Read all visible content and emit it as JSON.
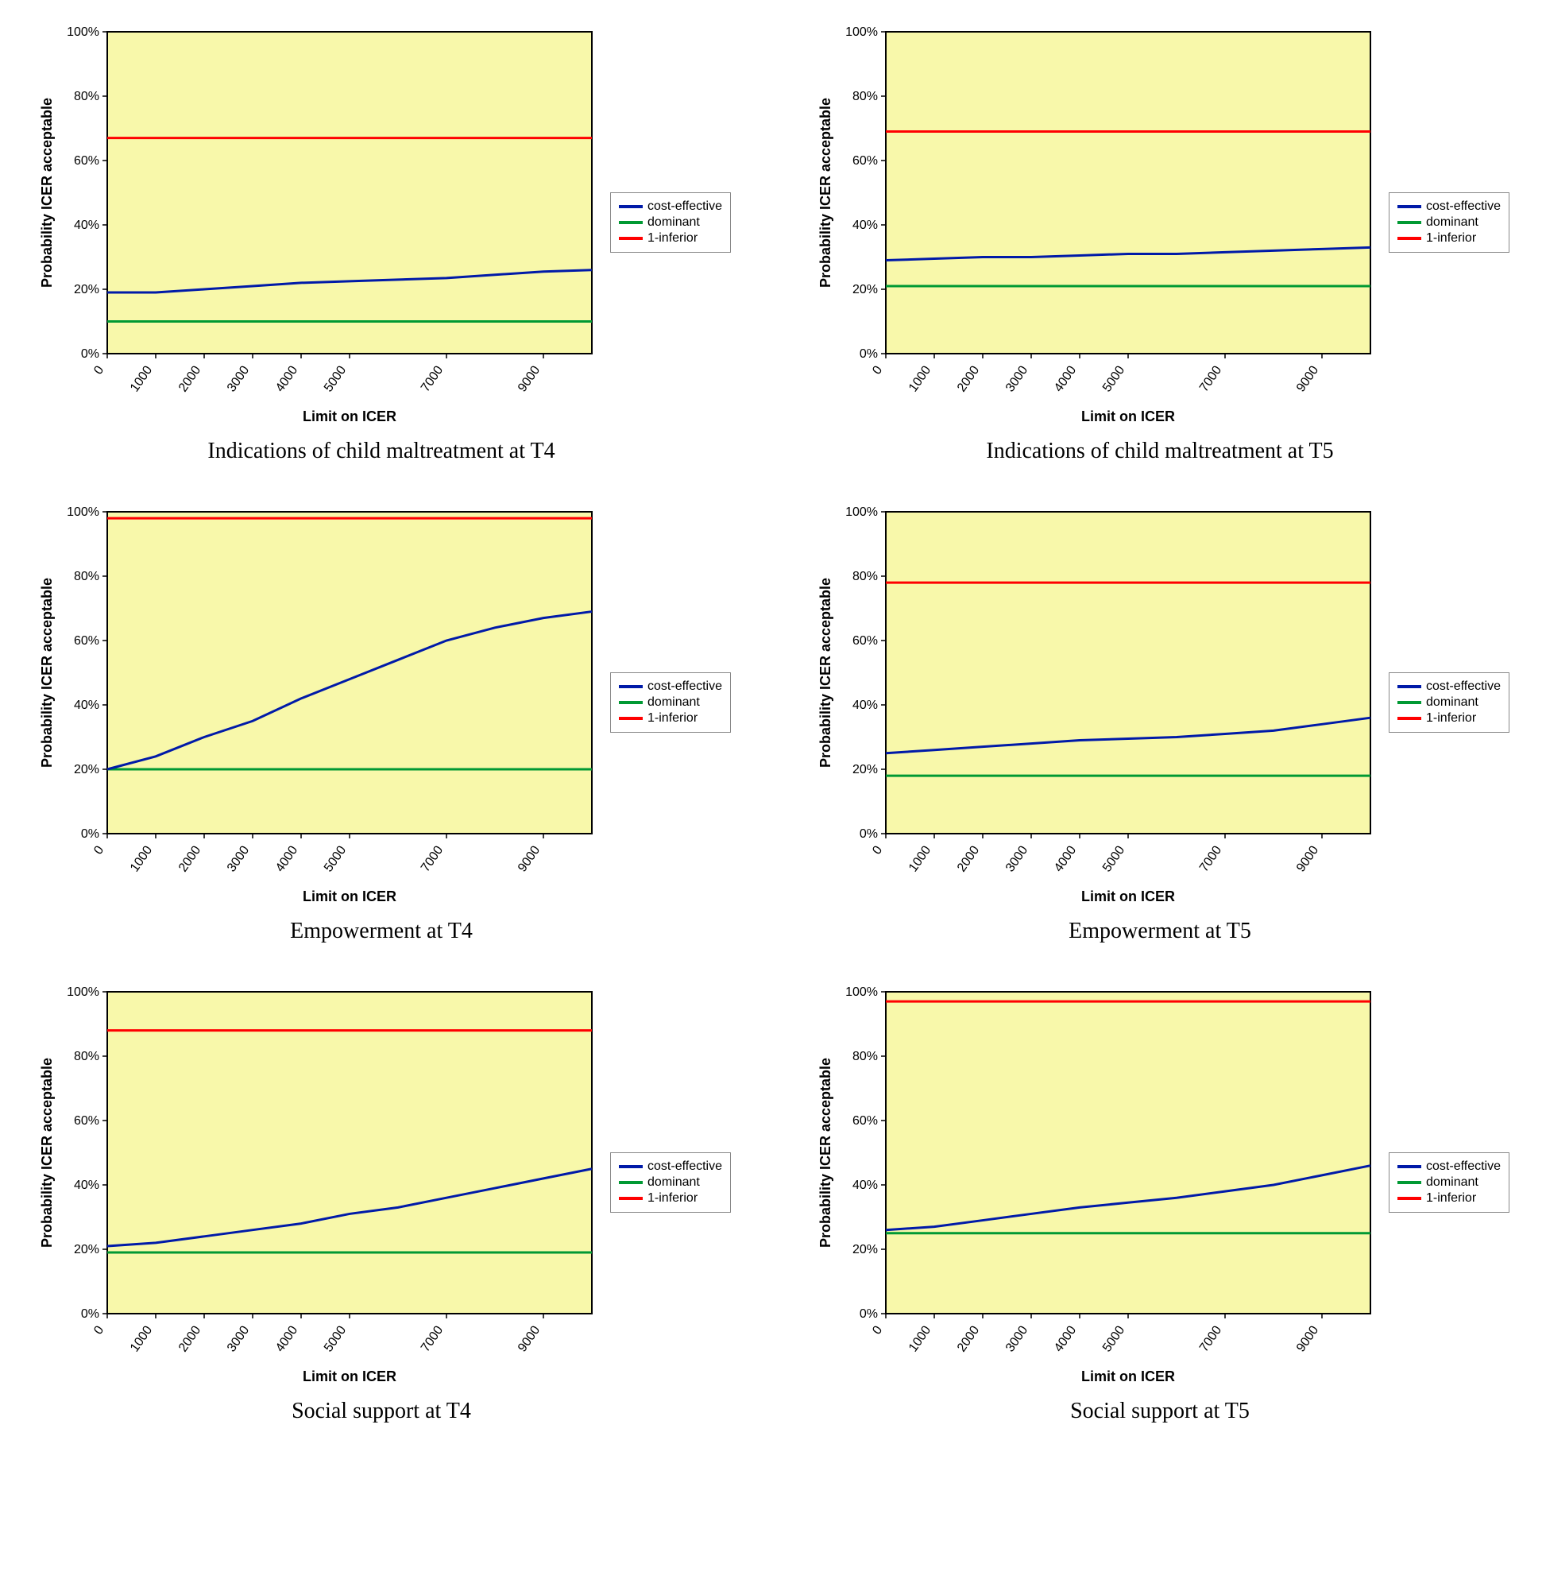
{
  "chart_style": {
    "plot_bg": "#f8f8aa",
    "axis_color": "#000000",
    "grid_color": "#000000",
    "colors": {
      "cost_effective": "#001aa8",
      "dominant": "#009933",
      "inferior": "#ff0000"
    },
    "line_width": 3,
    "axis_font_size": 14,
    "tick_font_size": 13,
    "ylabel": "Probability ICER acceptable",
    "xlabel": "Limit on ICER",
    "yticks": [
      0,
      20,
      40,
      60,
      80,
      100
    ],
    "ytick_labels": [
      "0%",
      "20%",
      "40%",
      "60%",
      "80%",
      "100%"
    ],
    "xticks": [
      0,
      1000,
      2000,
      3000,
      4000,
      5000,
      7000,
      9000
    ],
    "xlim": [
      0,
      10000
    ],
    "ylim": [
      0,
      100
    ],
    "legend": {
      "items": [
        "cost-effective",
        "dominant",
        "1-inferior"
      ]
    }
  },
  "charts": [
    {
      "caption": "Indications of child maltreatment at T4",
      "series": {
        "inferior": 67,
        "dominant": 10,
        "cost_effective": [
          [
            0,
            19
          ],
          [
            1000,
            19
          ],
          [
            2000,
            20
          ],
          [
            3000,
            21
          ],
          [
            4000,
            22
          ],
          [
            5000,
            22.5
          ],
          [
            6000,
            23
          ],
          [
            7000,
            23.5
          ],
          [
            8000,
            24.5
          ],
          [
            9000,
            25.5
          ],
          [
            10000,
            26
          ]
        ]
      }
    },
    {
      "caption": "Indications of child maltreatment at T5",
      "series": {
        "inferior": 69,
        "dominant": 21,
        "cost_effective": [
          [
            0,
            29
          ],
          [
            1000,
            29.5
          ],
          [
            2000,
            30
          ],
          [
            3000,
            30
          ],
          [
            4000,
            30.5
          ],
          [
            5000,
            31
          ],
          [
            6000,
            31
          ],
          [
            7000,
            31.5
          ],
          [
            8000,
            32
          ],
          [
            9000,
            32.5
          ],
          [
            10000,
            33
          ]
        ]
      }
    },
    {
      "caption": "Empowerment at T4",
      "series": {
        "inferior": 98,
        "dominant": 20,
        "cost_effective": [
          [
            0,
            20
          ],
          [
            1000,
            24
          ],
          [
            2000,
            30
          ],
          [
            3000,
            35
          ],
          [
            4000,
            42
          ],
          [
            5000,
            48
          ],
          [
            6000,
            54
          ],
          [
            7000,
            60
          ],
          [
            8000,
            64
          ],
          [
            9000,
            67
          ],
          [
            10000,
            69
          ]
        ]
      }
    },
    {
      "caption": "Empowerment at T5",
      "series": {
        "inferior": 78,
        "dominant": 18,
        "cost_effective": [
          [
            0,
            25
          ],
          [
            1000,
            26
          ],
          [
            2000,
            27
          ],
          [
            3000,
            28
          ],
          [
            4000,
            29
          ],
          [
            5000,
            29.5
          ],
          [
            6000,
            30
          ],
          [
            7000,
            31
          ],
          [
            8000,
            32
          ],
          [
            9000,
            34
          ],
          [
            10000,
            36
          ]
        ]
      }
    },
    {
      "caption": "Social support at T4",
      "series": {
        "inferior": 88,
        "dominant": 19,
        "cost_effective": [
          [
            0,
            21
          ],
          [
            1000,
            22
          ],
          [
            2000,
            24
          ],
          [
            3000,
            26
          ],
          [
            4000,
            28
          ],
          [
            5000,
            31
          ],
          [
            6000,
            33
          ],
          [
            7000,
            36
          ],
          [
            8000,
            39
          ],
          [
            9000,
            42
          ],
          [
            10000,
            45
          ]
        ]
      }
    },
    {
      "caption": "Social support at T5",
      "series": {
        "inferior": 97,
        "dominant": 25,
        "cost_effective": [
          [
            0,
            26
          ],
          [
            1000,
            27
          ],
          [
            2000,
            29
          ],
          [
            3000,
            31
          ],
          [
            4000,
            33
          ],
          [
            5000,
            34.5
          ],
          [
            6000,
            36
          ],
          [
            7000,
            38
          ],
          [
            8000,
            40
          ],
          [
            9000,
            43
          ],
          [
            10000,
            46
          ]
        ]
      }
    }
  ]
}
